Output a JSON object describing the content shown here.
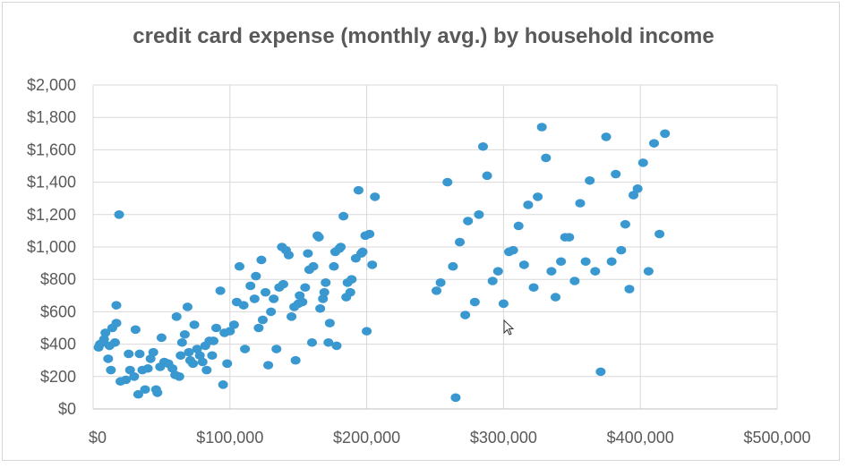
{
  "chart_data": {
    "type": "scatter",
    "title": "credit card expense (monthly avg.) by household income",
    "xlabel": "",
    "ylabel": "",
    "xlim": [
      0,
      500000
    ],
    "ylim": [
      0,
      2000
    ],
    "grid": true,
    "x_tick_labels": [
      "$0",
      "$100,000",
      "$200,000",
      "$300,000",
      "$400,000",
      "$500,000"
    ],
    "y_tick_labels": [
      "$0",
      "$200",
      "$400",
      "$600",
      "$800",
      "$1,000",
      "$1,200",
      "$1,400",
      "$1,600",
      "$1,800",
      "$2,000"
    ],
    "x_ticks": [
      0,
      100000,
      200000,
      300000,
      400000,
      500000
    ],
    "y_ticks": [
      0,
      200,
      400,
      600,
      800,
      1000,
      1200,
      1400,
      1600,
      1800,
      2000
    ],
    "marker_color": "#3a98d0",
    "points": [
      [
        4000,
        380
      ],
      [
        5000,
        400
      ],
      [
        7000,
        410
      ],
      [
        8000,
        430
      ],
      [
        9000,
        470
      ],
      [
        12000,
        390
      ],
      [
        11000,
        310
      ],
      [
        13000,
        240
      ],
      [
        14000,
        500
      ],
      [
        16000,
        410
      ],
      [
        17000,
        530
      ],
      [
        17000,
        640
      ],
      [
        19000,
        1200
      ],
      [
        20000,
        170
      ],
      [
        24000,
        180
      ],
      [
        26000,
        340
      ],
      [
        27000,
        240
      ],
      [
        30000,
        200
      ],
      [
        31000,
        490
      ],
      [
        33000,
        90
      ],
      [
        34000,
        340
      ],
      [
        36000,
        240
      ],
      [
        38000,
        120
      ],
      [
        40000,
        250
      ],
      [
        42000,
        310
      ],
      [
        44000,
        350
      ],
      [
        46000,
        120
      ],
      [
        47000,
        100
      ],
      [
        49000,
        260
      ],
      [
        50000,
        440
      ],
      [
        52000,
        290
      ],
      [
        55000,
        280
      ],
      [
        58000,
        250
      ],
      [
        60000,
        210
      ],
      [
        61000,
        570
      ],
      [
        63000,
        200
      ],
      [
        64000,
        330
      ],
      [
        65000,
        410
      ],
      [
        67000,
        460
      ],
      [
        69000,
        630
      ],
      [
        70000,
        350
      ],
      [
        71000,
        300
      ],
      [
        73000,
        280
      ],
      [
        74000,
        520
      ],
      [
        76000,
        370
      ],
      [
        78000,
        330
      ],
      [
        80000,
        290
      ],
      [
        82000,
        390
      ],
      [
        83000,
        240
      ],
      [
        85000,
        420
      ],
      [
        87000,
        330
      ],
      [
        88000,
        420
      ],
      [
        90000,
        500
      ],
      [
        93000,
        730
      ],
      [
        95000,
        150
      ],
      [
        96000,
        470
      ],
      [
        98000,
        280
      ],
      [
        100000,
        480
      ],
      [
        103000,
        520
      ],
      [
        105000,
        660
      ],
      [
        107000,
        880
      ],
      [
        110000,
        640
      ],
      [
        111000,
        370
      ],
      [
        115000,
        760
      ],
      [
        118000,
        680
      ],
      [
        119000,
        820
      ],
      [
        121000,
        500
      ],
      [
        123000,
        920
      ],
      [
        124000,
        550
      ],
      [
        126000,
        720
      ],
      [
        128000,
        270
      ],
      [
        130000,
        600
      ],
      [
        132000,
        680
      ],
      [
        134000,
        370
      ],
      [
        136000,
        750
      ],
      [
        138000,
        1000
      ],
      [
        139000,
        770
      ],
      [
        141000,
        980
      ],
      [
        143000,
        950
      ],
      [
        145000,
        570
      ],
      [
        147000,
        630
      ],
      [
        148000,
        300
      ],
      [
        150000,
        650
      ],
      [
        151000,
        700
      ],
      [
        153000,
        660
      ],
      [
        155000,
        750
      ],
      [
        157000,
        960
      ],
      [
        158000,
        860
      ],
      [
        160000,
        410
      ],
      [
        161000,
        880
      ],
      [
        164000,
        1070
      ],
      [
        165000,
        1060
      ],
      [
        166000,
        620
      ],
      [
        168000,
        680
      ],
      [
        169000,
        720
      ],
      [
        170000,
        780
      ],
      [
        172000,
        410
      ],
      [
        173000,
        530
      ],
      [
        176000,
        880
      ],
      [
        177000,
        970
      ],
      [
        178000,
        390
      ],
      [
        180000,
        990
      ],
      [
        181000,
        1000
      ],
      [
        183000,
        1190
      ],
      [
        185000,
        690
      ],
      [
        186000,
        780
      ],
      [
        188000,
        720
      ],
      [
        189000,
        800
      ],
      [
        192000,
        930
      ],
      [
        194000,
        1350
      ],
      [
        196000,
        960
      ],
      [
        197000,
        970
      ],
      [
        199000,
        1070
      ],
      [
        200000,
        480
      ],
      [
        202000,
        1080
      ],
      [
        204000,
        890
      ],
      [
        206000,
        1310
      ],
      [
        251000,
        730
      ],
      [
        254000,
        780
      ],
      [
        259000,
        1400
      ],
      [
        263000,
        880
      ],
      [
        265000,
        70
      ],
      [
        268000,
        1030
      ],
      [
        272000,
        580
      ],
      [
        274000,
        1160
      ],
      [
        279000,
        660
      ],
      [
        282000,
        1200
      ],
      [
        285000,
        1620
      ],
      [
        288000,
        1440
      ],
      [
        292000,
        790
      ],
      [
        296000,
        850
      ],
      [
        300000,
        650
      ],
      [
        304000,
        970
      ],
      [
        307000,
        980
      ],
      [
        311000,
        1130
      ],
      [
        315000,
        890
      ],
      [
        318000,
        1260
      ],
      [
        322000,
        750
      ],
      [
        325000,
        1310
      ],
      [
        328000,
        1740
      ],
      [
        331000,
        1550
      ],
      [
        335000,
        850
      ],
      [
        338000,
        690
      ],
      [
        342000,
        910
      ],
      [
        345000,
        1060
      ],
      [
        348000,
        1060
      ],
      [
        352000,
        790
      ],
      [
        356000,
        1270
      ],
      [
        360000,
        910
      ],
      [
        363000,
        1410
      ],
      [
        367000,
        850
      ],
      [
        371000,
        230
      ],
      [
        375000,
        1680
      ],
      [
        379000,
        910
      ],
      [
        382000,
        1450
      ],
      [
        386000,
        980
      ],
      [
        389000,
        1140
      ],
      [
        392000,
        740
      ],
      [
        395000,
        1320
      ],
      [
        398000,
        1360
      ],
      [
        402000,
        1520
      ],
      [
        406000,
        850
      ],
      [
        410000,
        1640
      ],
      [
        414000,
        1080
      ],
      [
        418000,
        1700
      ]
    ]
  }
}
